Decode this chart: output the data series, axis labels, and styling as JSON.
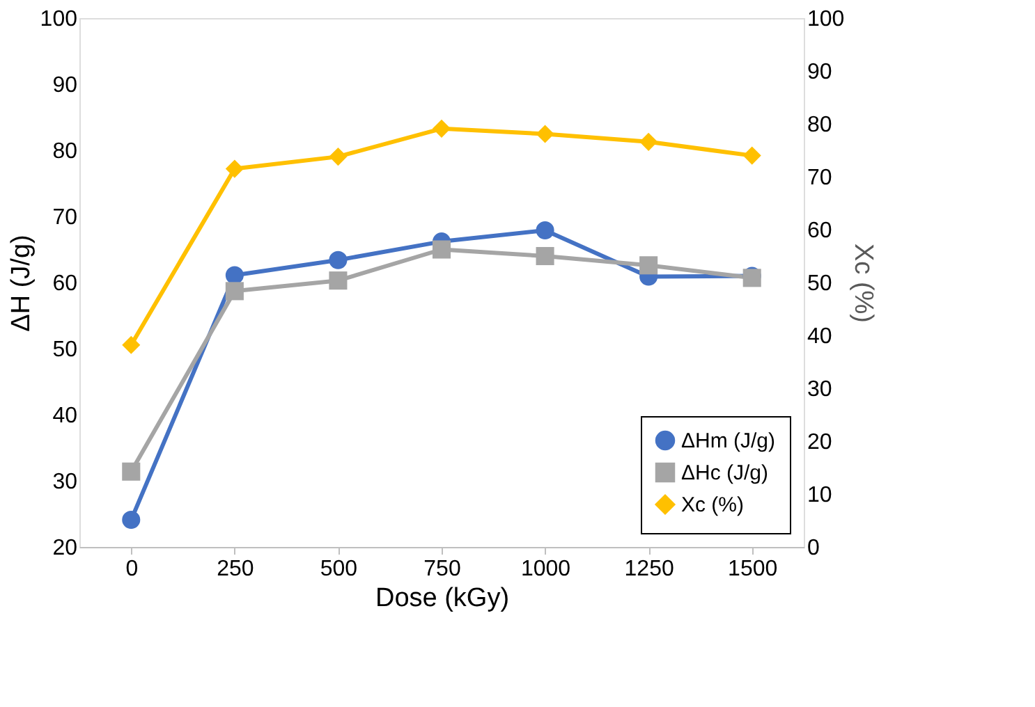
{
  "chart_data": {
    "type": "line",
    "xlabel": "Dose (kGy)",
    "ylabel": "ΔH (J/g)",
    "y2label": "Xc (%)",
    "categories": [
      "0",
      "250",
      "500",
      "750",
      "1000",
      "1250",
      "1500"
    ],
    "series": [
      {
        "name": "ΔHm (J/g)",
        "color": "#4472c4",
        "marker": "circle",
        "values": [
          24.1,
          61.1,
          63.4,
          66.2,
          67.9,
          60.9,
          61.0
        ]
      },
      {
        "name": "ΔHc (J/g)",
        "color": "#a5a5a5",
        "marker": "square",
        "values": [
          31.4,
          58.7,
          60.3,
          65.0,
          64.0,
          62.6,
          60.7
        ]
      },
      {
        "name": "Xc (%)",
        "color": "#ffc000",
        "marker": "diamond",
        "axis": "y2",
        "values": [
          38.2,
          71.5,
          73.8,
          79.1,
          78.1,
          76.6,
          74.0
        ]
      }
    ],
    "ylim": [
      20,
      100
    ],
    "yticks": [
      20,
      30,
      40,
      50,
      60,
      70,
      80,
      90,
      100
    ],
    "y2lim": [
      0,
      100
    ],
    "y2ticks": [
      0,
      10,
      20,
      30,
      40,
      50,
      60,
      70,
      80,
      90,
      100
    ],
    "grid": false,
    "legend": "bottom right",
    "line_style": "solid"
  }
}
